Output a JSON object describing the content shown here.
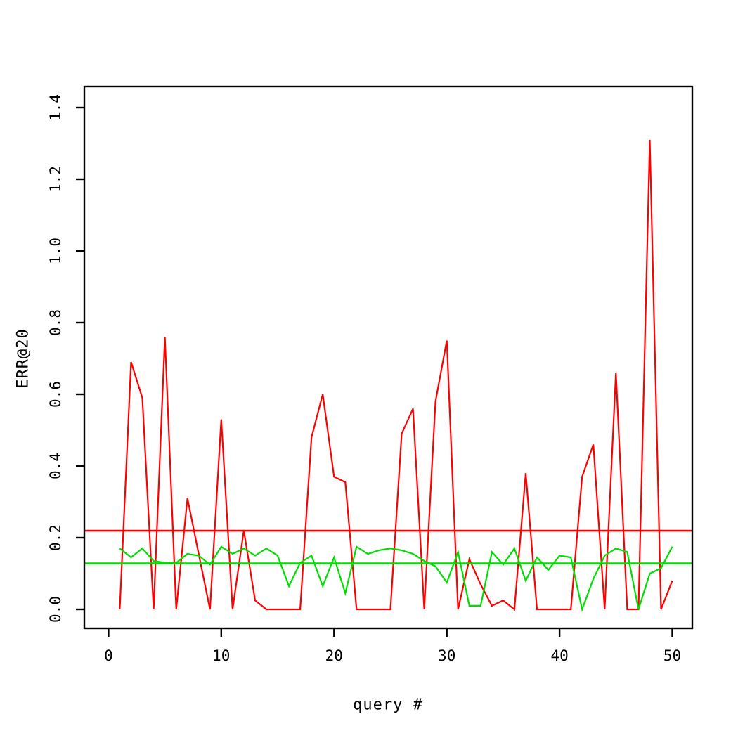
{
  "page": {
    "background": "#ffffff",
    "axis_color": "#000000"
  },
  "chart_data": {
    "type": "line",
    "title": "",
    "xlabel": "query #",
    "ylabel": "ERR@20",
    "grid": false,
    "legend": "none",
    "x_axis": {
      "ticks": [
        0,
        10,
        20,
        30,
        40,
        50
      ],
      "min": 0,
      "max": 50
    },
    "y_axis": {
      "ticks": [
        "0.0",
        "0.2",
        "0.4",
        "0.6",
        "0.8",
        "1.0",
        "1.2",
        "1.4"
      ],
      "min": 0.0,
      "max": 1.4
    },
    "x": [
      1,
      2,
      3,
      4,
      5,
      6,
      7,
      8,
      9,
      10,
      11,
      12,
      13,
      14,
      15,
      16,
      17,
      18,
      19,
      20,
      21,
      22,
      23,
      24,
      25,
      26,
      27,
      28,
      29,
      30,
      31,
      32,
      33,
      34,
      35,
      36,
      37,
      38,
      39,
      40,
      41,
      42,
      43,
      44,
      45,
      46,
      47,
      48,
      49,
      50
    ],
    "series": [
      {
        "name": "red",
        "color": "#ff0000",
        "mean_line": true,
        "mean": 0.219,
        "values": [
          0,
          0.69,
          0.59,
          0,
          0.76,
          0,
          0.31,
          0.155,
          0,
          0.53,
          0,
          0.22,
          0.025,
          0,
          0,
          0,
          0,
          0.48,
          0.6,
          0.37,
          0.355,
          0,
          0,
          0,
          0,
          0.49,
          0.56,
          0,
          0.58,
          0.75,
          0,
          0.14,
          0.07,
          0.01,
          0.025,
          0,
          0.38,
          0,
          0,
          0,
          0,
          0.37,
          0.46,
          0,
          0.66,
          0,
          0,
          1.31,
          0,
          0.08
        ]
      },
      {
        "name": "green",
        "color": "#00dd00",
        "mean_line": true,
        "mean": 0.128,
        "values": [
          0.17,
          0.145,
          0.17,
          0.135,
          0.13,
          0.13,
          0.155,
          0.15,
          0.125,
          0.175,
          0.155,
          0.17,
          0.15,
          0.17,
          0.15,
          0.065,
          0.13,
          0.15,
          0.065,
          0.145,
          0.045,
          0.175,
          0.155,
          0.165,
          0.17,
          0.165,
          0.155,
          0.135,
          0.12,
          0.075,
          0.16,
          0.01,
          0.01,
          0.16,
          0.125,
          0.17,
          0.08,
          0.145,
          0.11,
          0.15,
          0.145,
          0,
          0.085,
          0.15,
          0.17,
          0.16,
          0,
          0.1,
          0.115,
          0.175
        ]
      }
    ]
  }
}
